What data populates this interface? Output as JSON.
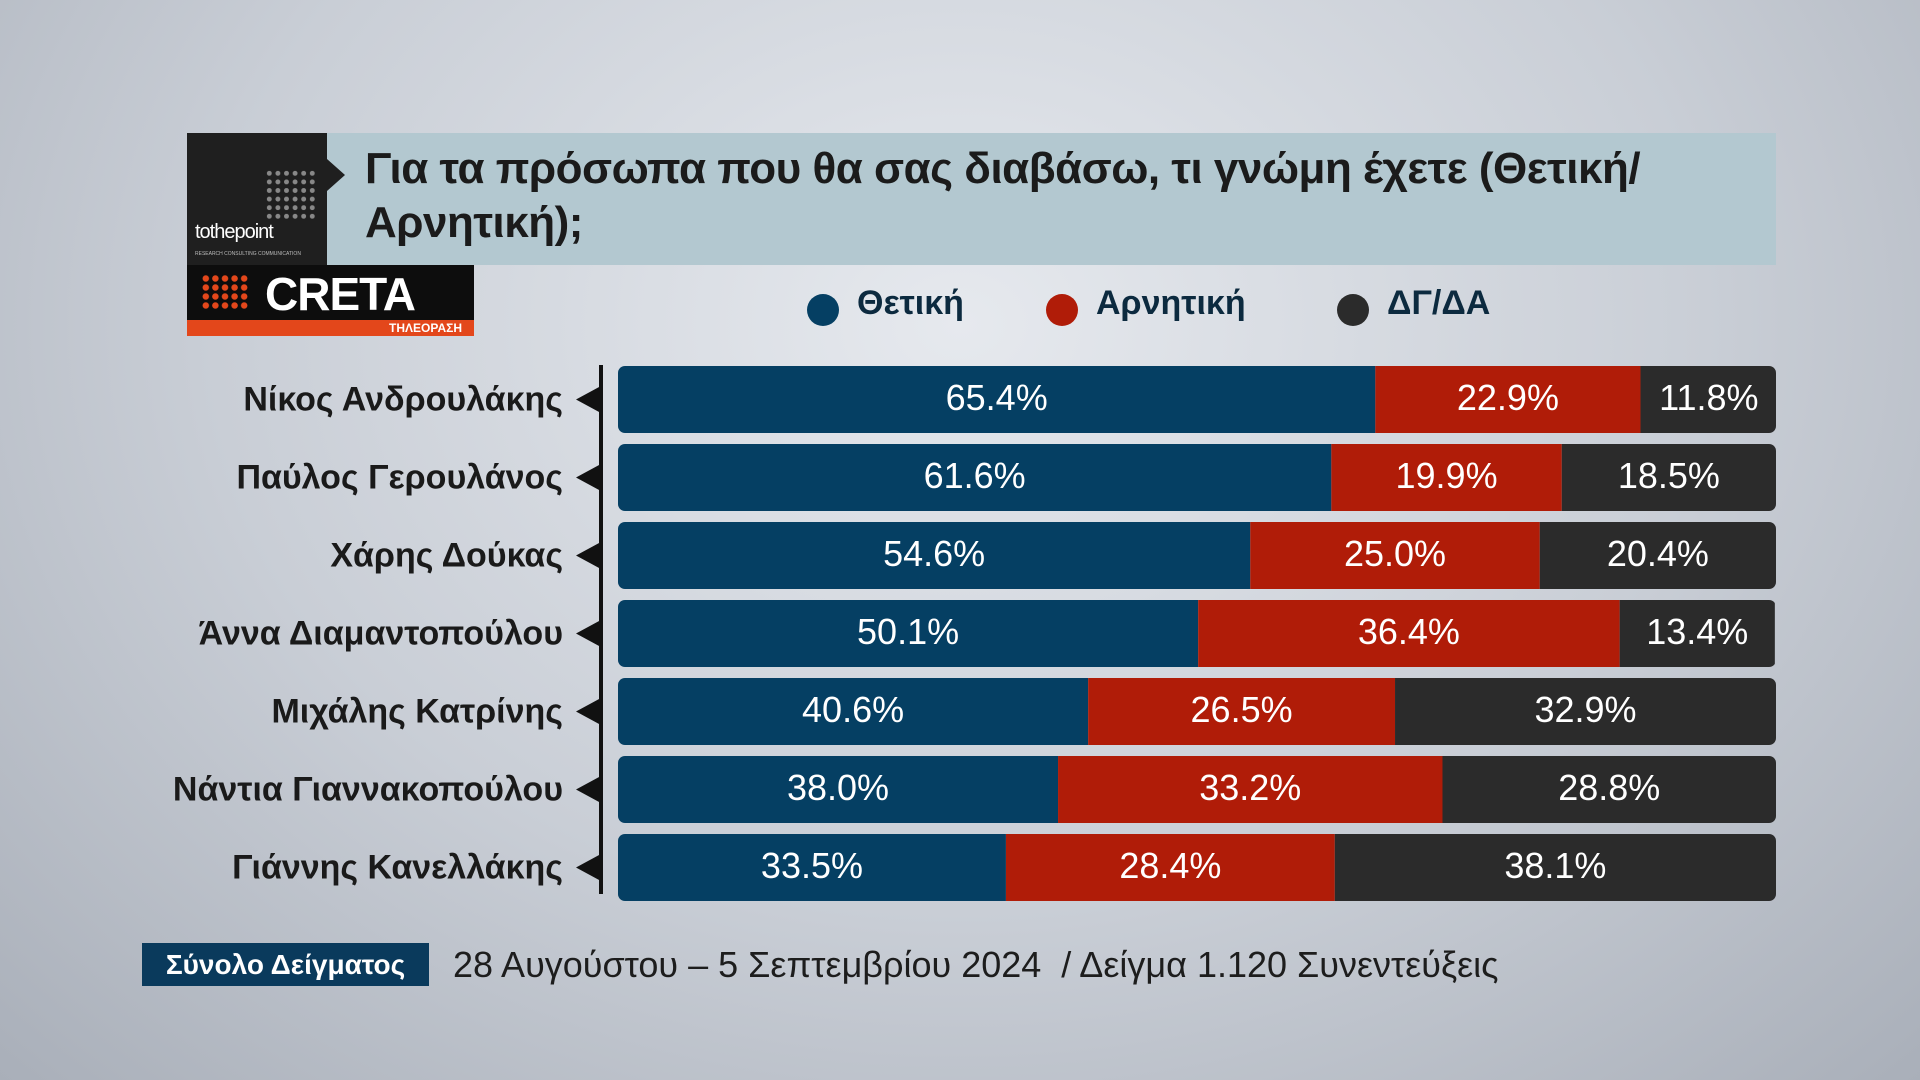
{
  "logos": {
    "agency": "tothepoint",
    "agency_tagline": "RESEARCH CONSULTING COMMUNICATION",
    "channel": "CRETA",
    "channel_sub": "ΤΗΛΕΟΡΑΣΗ"
  },
  "chart_data": {
    "type": "bar",
    "orientation": "horizontal",
    "stacked": true,
    "title": "Για τα πρόσωπα που θα σας διαβάσω, τι γνώμη έχετε (Θετική/ Αρνητική);",
    "categories": [
      "Νίκος Ανδρουλάκης",
      "Παύλος Γερουλάνος",
      "Χάρης Δούκας",
      "Άννα Διαμαντοπούλου",
      "Μιχάλης Κατρίνης",
      "Νάντια Γιαννακοπούλου",
      "Γιάννης Κανελλάκης"
    ],
    "series": [
      {
        "name": "Θετική",
        "color": "#053f63",
        "values": [
          65.4,
          61.6,
          54.6,
          50.1,
          40.6,
          38.0,
          33.5
        ],
        "value_labels": [
          "65.4%",
          "61.6%",
          "54.6%",
          "50.1%",
          "40.6%",
          "38.0%",
          "33.5%"
        ]
      },
      {
        "name": "Αρνητική",
        "color": "#b01c08",
        "values": [
          22.9,
          19.9,
          25.0,
          36.4,
          26.5,
          33.2,
          28.4
        ],
        "value_labels": [
          "22.9%",
          "19.9%",
          "25.0%",
          "36.4%",
          "26.5%",
          "33.2%",
          "28.4%"
        ]
      },
      {
        "name": "ΔΓ/ΔΑ",
        "color": "#2b2b2b",
        "values": [
          11.8,
          18.5,
          20.4,
          13.4,
          32.9,
          28.8,
          38.1
        ],
        "value_labels": [
          "11.8%",
          "18.5%",
          "20.4%",
          "13.4%",
          "32.9%",
          "28.8%",
          "38.1%"
        ]
      }
    ],
    "xlim": [
      0,
      100
    ]
  },
  "footer": {
    "label": "Σύνολο Δείγματος",
    "text": "28 Αυγούστου – 5 Σεπτεμβρίου 2024  / Δείγμα 1.120 Συνεντεύξεις"
  }
}
